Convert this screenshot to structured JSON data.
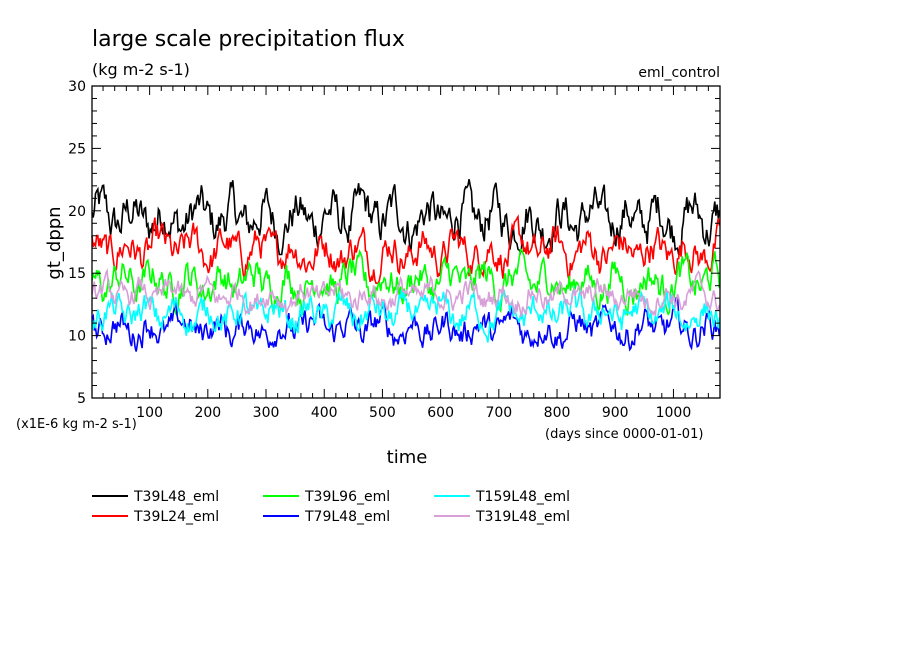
{
  "chart_data": {
    "type": "line",
    "title": "large scale precipitation flux",
    "subtitle": "(kg m-2 s-1)",
    "tag": "eml_control",
    "ylabel": "gt_dppn",
    "xlabel": "time",
    "y_multiplier_note": "(x1E-6 kg m-2 s-1)",
    "x_units_note": "(days since 0000-01-01)",
    "xlim": [
      1,
      1080
    ],
    "ylim": [
      5,
      30
    ],
    "xticks": [
      100,
      200,
      300,
      400,
      500,
      600,
      700,
      800,
      900,
      1000
    ],
    "yticks": [
      5,
      10,
      15,
      20,
      25,
      30
    ],
    "grid": false,
    "legend_position": "bottom-left",
    "series": [
      {
        "name": "T39L48_eml",
        "color": "#000000",
        "mean": 19.4,
        "amp": 1.6,
        "min": 16.5,
        "max": 23.3
      },
      {
        "name": "T39L24_eml",
        "color": "#ff0000",
        "mean": 16.8,
        "amp": 1.3,
        "min": 14.2,
        "max": 20.6
      },
      {
        "name": "T39L96_eml",
        "color": "#00ff00",
        "mean": 14.3,
        "amp": 1.3,
        "min": 11.5,
        "max": 18.0
      },
      {
        "name": "T79L48_eml",
        "color": "#0000ff",
        "mean": 10.6,
        "amp": 1.1,
        "min": 7.9,
        "max": 14.2
      },
      {
        "name": "T159L48_eml",
        "color": "#00ffff",
        "mean": 11.7,
        "amp": 1.1,
        "min": 8.6,
        "max": 15.0
      },
      {
        "name": "T319L48_eml",
        "color": "#d8a0d8",
        "mean": 13.2,
        "amp": 0.9,
        "min": 10.6,
        "max": 16.0
      }
    ]
  }
}
